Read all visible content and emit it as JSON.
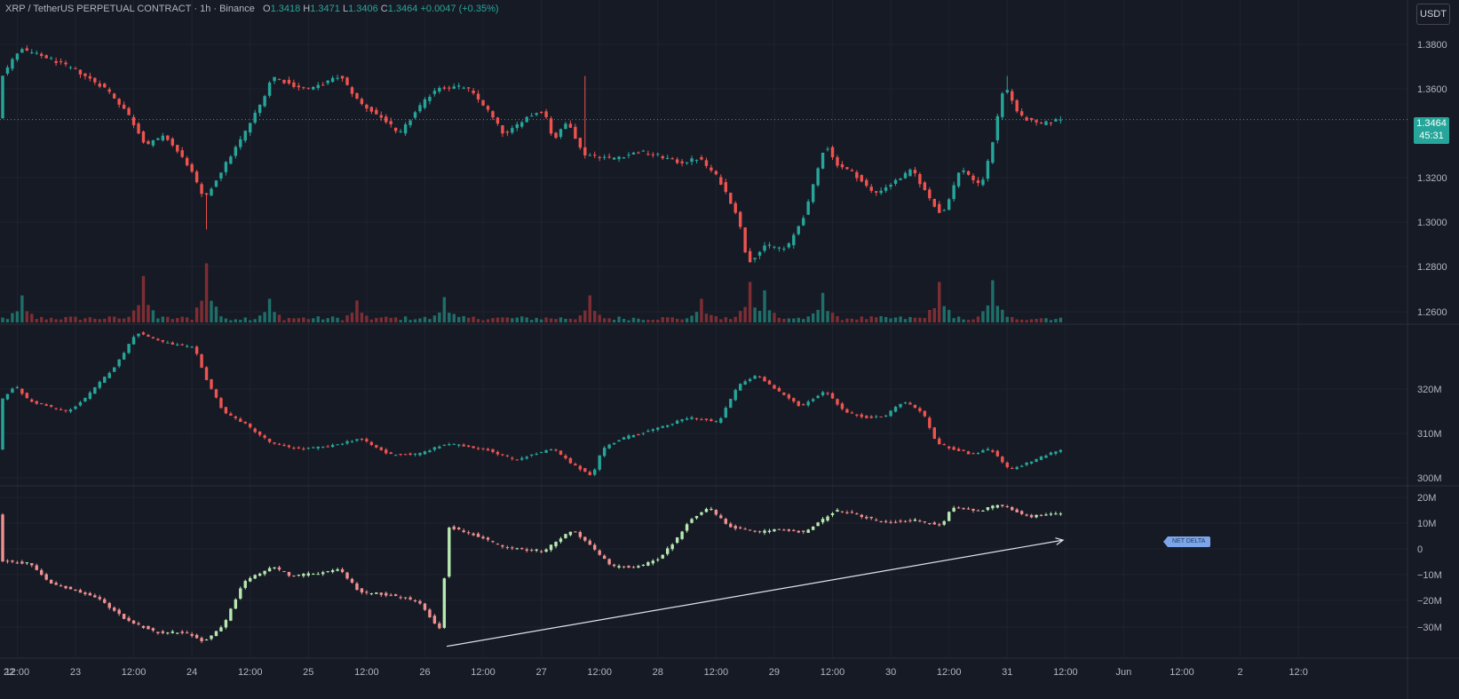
{
  "header": {
    "symbol": "XRP / TetherUS PERPETUAL CONTRACT",
    "interval": "1h",
    "exchange": "Binance",
    "ohlc": [
      {
        "key": "O",
        "value": "1.3418"
      },
      {
        "key": "H",
        "value": "1.3471"
      },
      {
        "key": "L",
        "value": "1.3406"
      },
      {
        "key": "C",
        "value": "1.3464"
      }
    ],
    "change": "+0.0047 (+0.35%)"
  },
  "currency_button": "USDT",
  "last_price": {
    "price": "1.3464",
    "countdown": "45:31"
  },
  "net_delta_label": "NET DELTA",
  "colors": {
    "background": "#161a25",
    "grid": "#1f2330",
    "up": "#26a69a",
    "down": "#ef5350",
    "up_volume": "#1e6f69",
    "down_volume": "#7e2e33",
    "delta_up": "#b6e8b0",
    "delta_down": "#f0908f",
    "axis_text": "#b2b5be",
    "panel_border": "#2a2e39"
  },
  "x_axis": {
    "labels": [
      "22",
      "12:00",
      "23",
      "12:00",
      "24",
      "12:00",
      "25",
      "12:00",
      "26",
      "12:00",
      "27",
      "12:00",
      "28",
      "12:00",
      "29",
      "12:00",
      "30",
      "12:00",
      "31",
      "12:00",
      "Jun",
      "12:00",
      "2",
      "12:0"
    ]
  },
  "chart_data": [
    {
      "type": "candlestick",
      "title": "XRP / TetherUS PERPETUAL CONTRACT · 1h · Binance",
      "y_ticks": [
        "1.3800",
        "1.3600",
        "1.3200",
        "1.3000",
        "1.2800",
        "1.2600"
      ],
      "ylim": [
        1.2552,
        1.3898
      ],
      "last_value": 1.3464,
      "anchors": [
        {
          "t": 0,
          "v": 1.365
        },
        {
          "t": 4,
          "v": 1.378
        },
        {
          "t": 10,
          "v": 1.374
        },
        {
          "t": 16,
          "v": 1.368
        },
        {
          "t": 22,
          "v": 1.36
        },
        {
          "t": 26,
          "v": 1.35
        },
        {
          "t": 30,
          "v": 1.335
        },
        {
          "t": 34,
          "v": 1.339
        },
        {
          "t": 39,
          "v": 1.325
        },
        {
          "t": 42,
          "v": 1.31
        },
        {
          "t": 46,
          "v": 1.325
        },
        {
          "t": 50,
          "v": 1.339
        },
        {
          "t": 54,
          "v": 1.355
        },
        {
          "t": 56,
          "v": 1.366
        },
        {
          "t": 60,
          "v": 1.362
        },
        {
          "t": 64,
          "v": 1.36
        },
        {
          "t": 70,
          "v": 1.366
        },
        {
          "t": 74,
          "v": 1.354
        },
        {
          "t": 80,
          "v": 1.345
        },
        {
          "t": 82,
          "v": 1.339
        },
        {
          "t": 86,
          "v": 1.351
        },
        {
          "t": 90,
          "v": 1.361
        },
        {
          "t": 96,
          "v": 1.361
        },
        {
          "t": 100,
          "v": 1.352
        },
        {
          "t": 104,
          "v": 1.339
        },
        {
          "t": 108,
          "v": 1.347
        },
        {
          "t": 112,
          "v": 1.351
        },
        {
          "t": 114,
          "v": 1.337
        },
        {
          "t": 117,
          "v": 1.346
        },
        {
          "t": 120,
          "v": 1.331
        },
        {
          "t": 126,
          "v": 1.329
        },
        {
          "t": 132,
          "v": 1.332
        },
        {
          "t": 136,
          "v": 1.33
        },
        {
          "t": 140,
          "v": 1.327
        },
        {
          "t": 144,
          "v": 1.329
        },
        {
          "t": 148,
          "v": 1.32
        },
        {
          "t": 152,
          "v": 1.303
        },
        {
          "t": 154,
          "v": 1.282
        },
        {
          "t": 158,
          "v": 1.29
        },
        {
          "t": 162,
          "v": 1.288
        },
        {
          "t": 166,
          "v": 1.305
        },
        {
          "t": 170,
          "v": 1.336
        },
        {
          "t": 172,
          "v": 1.327
        },
        {
          "t": 176,
          "v": 1.322
        },
        {
          "t": 180,
          "v": 1.313
        },
        {
          "t": 184,
          "v": 1.318
        },
        {
          "t": 188,
          "v": 1.324
        },
        {
          "t": 190,
          "v": 1.316
        },
        {
          "t": 194,
          "v": 1.303
        },
        {
          "t": 198,
          "v": 1.325
        },
        {
          "t": 202,
          "v": 1.316
        },
        {
          "t": 204,
          "v": 1.331
        },
        {
          "t": 206,
          "v": 1.354
        },
        {
          "t": 207,
          "v": 1.362
        },
        {
          "t": 210,
          "v": 1.348
        },
        {
          "t": 214,
          "v": 1.344
        },
        {
          "t": 218,
          "v": 1.3464
        }
      ],
      "spikes": [
        {
          "t": 42,
          "v": 1.297,
          "dir": "low"
        },
        {
          "t": 154,
          "v": 1.282,
          "dir": "low"
        },
        {
          "t": 120,
          "v": 1.366,
          "dir": "high"
        },
        {
          "t": 207,
          "v": 1.366,
          "dir": "high"
        }
      ],
      "volume": {
        "baseline": 0.025,
        "peaks": [
          {
            "t": 4,
            "v": 0.32
          },
          {
            "t": 29,
            "v": 0.55
          },
          {
            "t": 42,
            "v": 0.7
          },
          {
            "t": 55,
            "v": 0.28
          },
          {
            "t": 73,
            "v": 0.26
          },
          {
            "t": 91,
            "v": 0.3
          },
          {
            "t": 121,
            "v": 0.32
          },
          {
            "t": 144,
            "v": 0.28
          },
          {
            "t": 154,
            "v": 0.48
          },
          {
            "t": 157,
            "v": 0.38
          },
          {
            "t": 169,
            "v": 0.35
          },
          {
            "t": 193,
            "v": 0.48
          },
          {
            "t": 204,
            "v": 0.5
          }
        ]
      }
    },
    {
      "type": "candlestick",
      "title": "",
      "y_ticks": [
        "320M",
        "310M",
        "300M"
      ],
      "ylim": [
        295.4,
        325.0
      ],
      "last_value": 301.8,
      "anchors": [
        {
          "t": 0,
          "v": 311
        },
        {
          "t": 3,
          "v": 314
        },
        {
          "t": 6,
          "v": 311
        },
        {
          "t": 14,
          "v": 309
        },
        {
          "t": 18,
          "v": 312
        },
        {
          "t": 24,
          "v": 318
        },
        {
          "t": 28,
          "v": 324
        },
        {
          "t": 34,
          "v": 322
        },
        {
          "t": 40,
          "v": 321
        },
        {
          "t": 42,
          "v": 316
        },
        {
          "t": 46,
          "v": 309
        },
        {
          "t": 50,
          "v": 307
        },
        {
          "t": 56,
          "v": 303
        },
        {
          "t": 62,
          "v": 302
        },
        {
          "t": 68,
          "v": 302.5
        },
        {
          "t": 74,
          "v": 304
        },
        {
          "t": 80,
          "v": 301
        },
        {
          "t": 86,
          "v": 301
        },
        {
          "t": 92,
          "v": 303
        },
        {
          "t": 100,
          "v": 302
        },
        {
          "t": 106,
          "v": 300
        },
        {
          "t": 110,
          "v": 301
        },
        {
          "t": 114,
          "v": 302
        },
        {
          "t": 118,
          "v": 299
        },
        {
          "t": 122,
          "v": 297
        },
        {
          "t": 124,
          "v": 302
        },
        {
          "t": 128,
          "v": 304
        },
        {
          "t": 136,
          "v": 306
        },
        {
          "t": 142,
          "v": 308
        },
        {
          "t": 148,
          "v": 307
        },
        {
          "t": 152,
          "v": 314
        },
        {
          "t": 156,
          "v": 316
        },
        {
          "t": 160,
          "v": 313
        },
        {
          "t": 165,
          "v": 310
        },
        {
          "t": 170,
          "v": 313
        },
        {
          "t": 174,
          "v": 309
        },
        {
          "t": 178,
          "v": 308
        },
        {
          "t": 182,
          "v": 308
        },
        {
          "t": 186,
          "v": 311
        },
        {
          "t": 190,
          "v": 309
        },
        {
          "t": 193,
          "v": 303
        },
        {
          "t": 200,
          "v": 301
        },
        {
          "t": 204,
          "v": 302
        },
        {
          "t": 208,
          "v": 298
        },
        {
          "t": 218,
          "v": 301.8
        }
      ]
    },
    {
      "type": "candlestick",
      "title": "",
      "y_ticks": [
        "20M",
        "10M",
        "0",
        "−10M",
        "−20M",
        "−30M"
      ],
      "ylim": [
        -34.0,
        20.6
      ],
      "last_value": 12,
      "anchors": [
        {
          "t": 0,
          "v": -3
        },
        {
          "t": 6,
          "v": -4
        },
        {
          "t": 10,
          "v": -10
        },
        {
          "t": 20,
          "v": -15
        },
        {
          "t": 26,
          "v": -22
        },
        {
          "t": 32,
          "v": -26
        },
        {
          "t": 38,
          "v": -26
        },
        {
          "t": 42,
          "v": -29
        },
        {
          "t": 46,
          "v": -24
        },
        {
          "t": 50,
          "v": -10
        },
        {
          "t": 56,
          "v": -5
        },
        {
          "t": 60,
          "v": -8
        },
        {
          "t": 66,
          "v": -7
        },
        {
          "t": 70,
          "v": -6
        },
        {
          "t": 74,
          "v": -13
        },
        {
          "t": 80,
          "v": -14
        },
        {
          "t": 86,
          "v": -16
        },
        {
          "t": 90,
          "v": -24
        },
        {
          "t": 91,
          "v": -25
        },
        {
          "t": 92,
          "v": 8
        },
        {
          "t": 98,
          "v": 5
        },
        {
          "t": 104,
          "v": 1
        },
        {
          "t": 112,
          "v": 0
        },
        {
          "t": 118,
          "v": 7
        },
        {
          "t": 126,
          "v": -5
        },
        {
          "t": 132,
          "v": -5
        },
        {
          "t": 136,
          "v": -2
        },
        {
          "t": 140,
          "v": 5
        },
        {
          "t": 142,
          "v": 10
        },
        {
          "t": 146,
          "v": 14
        },
        {
          "t": 150,
          "v": 8
        },
        {
          "t": 156,
          "v": 6
        },
        {
          "t": 160,
          "v": 7
        },
        {
          "t": 166,
          "v": 6
        },
        {
          "t": 172,
          "v": 13
        },
        {
          "t": 176,
          "v": 12
        },
        {
          "t": 182,
          "v": 9
        },
        {
          "t": 188,
          "v": 10
        },
        {
          "t": 194,
          "v": 8
        },
        {
          "t": 196,
          "v": 14
        },
        {
          "t": 202,
          "v": 13
        },
        {
          "t": 206,
          "v": 15
        },
        {
          "t": 212,
          "v": 11
        },
        {
          "t": 218,
          "v": 12
        }
      ],
      "trend_line": {
        "from": {
          "t": 91.5,
          "v": -30.5
        },
        "to": {
          "t": 218.5,
          "v": 3.5
        }
      }
    }
  ]
}
